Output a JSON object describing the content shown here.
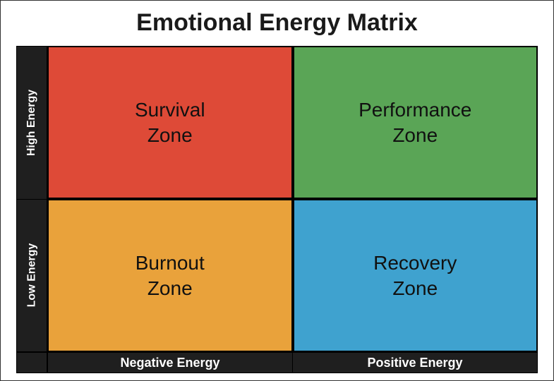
{
  "diagram": {
    "type": "quadrant-matrix",
    "title": "Emotional Energy Matrix",
    "title_fontsize": 34,
    "title_color": "#1a1a1a",
    "page_bg": "#ffffff",
    "axis": {
      "y": {
        "high": "High Energy",
        "low": "Low Energy",
        "bg": "#1f1f1f",
        "fg": "#ffffff",
        "fontsize": 16
      },
      "x": {
        "neg": "Negative Energy",
        "pos": "Positive Energy",
        "bg": "#1f1f1f",
        "fg": "#ffffff",
        "fontsize": 18
      }
    },
    "quadrants": {
      "top_left": {
        "line1": "Survival",
        "line2": "Zone",
        "bg": "#de4a37"
      },
      "top_right": {
        "line1": "Performance",
        "line2": "Zone",
        "bg": "#5aa556"
      },
      "bot_left": {
        "line1": "Burnout",
        "line2": "Zone",
        "bg": "#e9a23b"
      },
      "bot_right": {
        "line1": "Recovery",
        "line2": "Zone",
        "bg": "#3fa2cf"
      }
    },
    "quad_fontsize": 28,
    "quad_border_color": "#000000",
    "quad_text_color": "#111111"
  }
}
